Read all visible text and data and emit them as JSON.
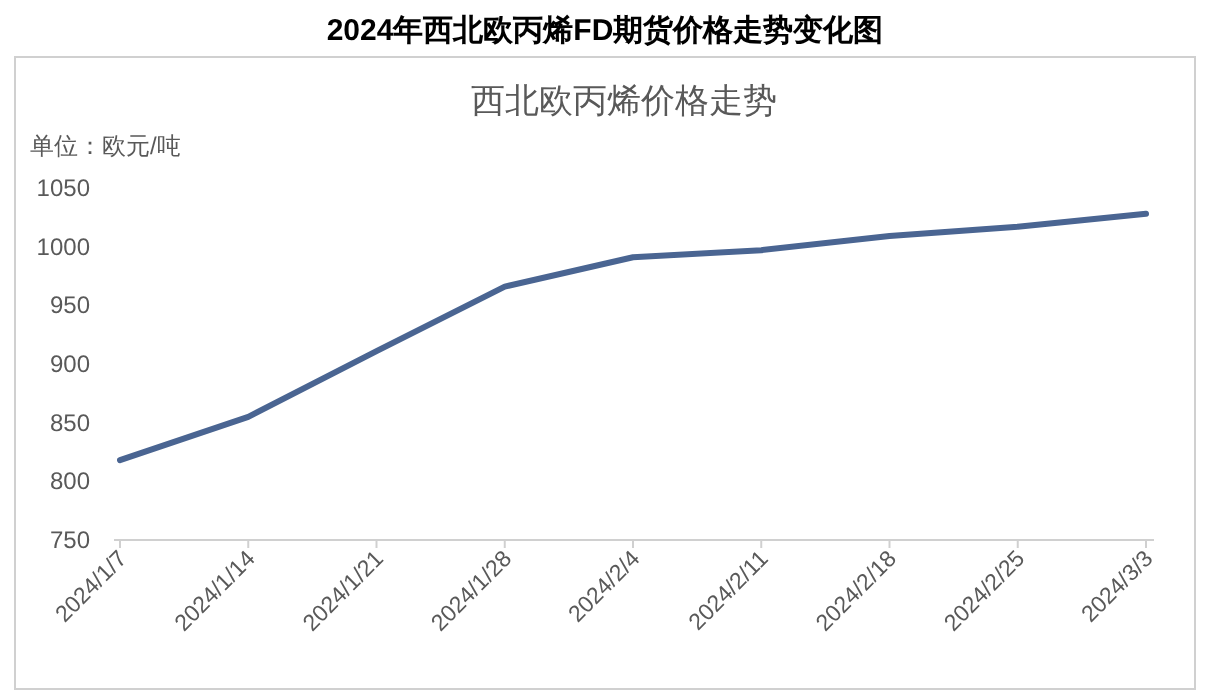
{
  "chart_data": {
    "type": "line",
    "title": "2024年西北欧丙烯FD期货价格走势变化图",
    "subtitle": "西北欧丙烯价格走势",
    "ylabel": "单位：欧元/吨",
    "categories": [
      "2024/1/7",
      "2024/1/14",
      "2024/1/21",
      "2024/1/28",
      "2024/2/4",
      "2024/2/11",
      "2024/2/18",
      "2024/2/25",
      "2024/3/3"
    ],
    "series": [
      {
        "color": "#4a6592",
        "values": [
          818,
          855,
          911,
          966,
          991,
          997,
          1009,
          1017,
          1028
        ]
      }
    ],
    "ylim": [
      750,
      1050
    ],
    "yticks": [
      750,
      800,
      850,
      900,
      950,
      1000,
      1050
    ],
    "grid": false,
    "marker": "none",
    "line_style": "solid"
  }
}
